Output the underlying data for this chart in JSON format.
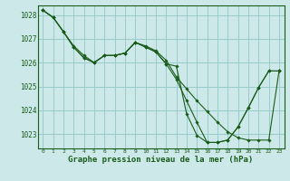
{
  "background_color": "#cce8e8",
  "grid_color": "#99cccc",
  "line_color": "#1a5c1a",
  "marker_color": "#1a5c1a",
  "xlabel": "Graphe pression niveau de la mer (hPa)",
  "xlabel_fontsize": 6.5,
  "ylim": [
    1022.4,
    1028.4
  ],
  "xlim": [
    -0.5,
    23.5
  ],
  "yticks": [
    1023,
    1024,
    1025,
    1026,
    1027,
    1028
  ],
  "xticks": [
    0,
    1,
    2,
    3,
    4,
    5,
    6,
    7,
    8,
    9,
    10,
    11,
    12,
    13,
    14,
    15,
    16,
    17,
    18,
    19,
    20,
    21,
    22,
    23
  ],
  "series": [
    [
      1028.2,
      1027.9,
      1027.3,
      1026.7,
      1026.3,
      1026.0,
      1026.3,
      1026.3,
      1026.4,
      1026.85,
      1026.7,
      1026.5,
      1026.1,
      1025.4,
      1024.9,
      1024.4,
      1023.95,
      1023.5,
      1023.1,
      1022.85,
      1022.75,
      1022.75,
      1022.75,
      1025.65
    ],
    [
      1028.2,
      1027.9,
      1027.3,
      1026.65,
      1026.2,
      1026.0,
      1026.3,
      1026.3,
      1026.4,
      1026.85,
      1026.65,
      1026.45,
      1025.95,
      1025.85,
      1023.85,
      1022.95,
      1022.65,
      1022.65,
      1022.75,
      1023.3,
      1024.1,
      1024.95,
      1025.65,
      1025.65
    ],
    [
      1028.2,
      1027.9,
      1027.3,
      1026.65,
      1026.2,
      1026.0,
      1026.3,
      1026.3,
      1026.4,
      1026.85,
      1026.65,
      1026.45,
      1025.95,
      1025.3,
      1024.4,
      1023.5,
      1022.65,
      1022.65,
      1022.75,
      1023.3,
      1024.1,
      1024.95,
      1025.65,
      1025.65
    ]
  ]
}
